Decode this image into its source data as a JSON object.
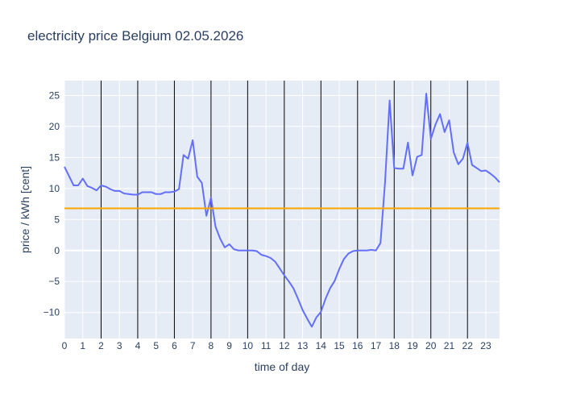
{
  "chart_data": {
    "type": "line",
    "title": "electricity price Belgium 02.05.2026",
    "xlabel": "time of day",
    "ylabel": "price / kWh [cent]",
    "xlim": [
      0,
      23.75
    ],
    "ylim": [
      -14.2,
      27.4
    ],
    "x_ticks": [
      0,
      1,
      2,
      3,
      4,
      5,
      6,
      7,
      8,
      9,
      10,
      11,
      12,
      13,
      14,
      15,
      16,
      17,
      18,
      19,
      20,
      21,
      22,
      23
    ],
    "y_ticks": [
      -10,
      -5,
      0,
      5,
      10,
      15,
      20,
      25
    ],
    "vertical_lines": [
      2,
      4,
      6,
      8,
      10,
      12,
      14,
      16,
      18,
      20,
      22
    ],
    "average_line": {
      "value": 6.8,
      "color": "#ffa500"
    },
    "series": [
      {
        "color": "#636efa",
        "x": [
          0,
          0.25,
          0.5,
          0.75,
          1,
          1.25,
          1.5,
          1.75,
          2,
          2.25,
          2.5,
          2.75,
          3,
          3.25,
          3.5,
          3.75,
          4,
          4.25,
          4.5,
          4.75,
          5,
          5.25,
          5.5,
          5.75,
          6,
          6.25,
          6.5,
          6.75,
          7,
          7.25,
          7.5,
          7.75,
          8,
          8.25,
          8.5,
          8.75,
          9,
          9.25,
          9.5,
          9.75,
          10,
          10.25,
          10.5,
          10.75,
          11,
          11.25,
          11.5,
          11.75,
          12,
          12.25,
          12.5,
          12.75,
          13,
          13.25,
          13.5,
          13.75,
          14,
          14.25,
          14.5,
          14.75,
          15,
          15.25,
          15.5,
          15.75,
          16,
          16.25,
          16.5,
          16.75,
          17,
          17.25,
          17.5,
          17.75,
          18,
          18.25,
          18.5,
          18.75,
          19,
          19.25,
          19.5,
          19.75,
          20,
          20.25,
          20.5,
          20.75,
          21,
          21.25,
          21.5,
          21.75,
          22,
          22.25,
          22.5,
          22.75,
          23,
          23.25,
          23.5,
          23.75
        ],
        "y": [
          13.5,
          12.0,
          10.5,
          10.5,
          11.6,
          10.4,
          10.1,
          9.7,
          10.5,
          10.3,
          9.9,
          9.6,
          9.6,
          9.2,
          9.1,
          9.0,
          9.0,
          9.4,
          9.4,
          9.4,
          9.1,
          9.1,
          9.4,
          9.4,
          9.5,
          9.9,
          15.4,
          14.8,
          17.8,
          11.9,
          10.9,
          5.6,
          8.5,
          3.8,
          1.9,
          0.5,
          1.0,
          0.2,
          0.0,
          0.0,
          0.0,
          0.0,
          -0.1,
          -0.7,
          -0.9,
          -1.2,
          -1.8,
          -2.9,
          -4.0,
          -5.0,
          -6.1,
          -7.8,
          -9.6,
          -11.0,
          -12.3,
          -10.8,
          -9.9,
          -7.8,
          -6.1,
          -4.9,
          -3.0,
          -1.4,
          -0.5,
          -0.1,
          0.0,
          0.0,
          0.0,
          0.1,
          0.0,
          1.2,
          11.0,
          24.2,
          13.3,
          13.2,
          13.2,
          17.4,
          12.1,
          15.1,
          15.4,
          25.3,
          18.0,
          20.3,
          22.0,
          19.1,
          21.0,
          15.8,
          13.9,
          14.8,
          17.4,
          13.8,
          13.3,
          12.8,
          12.9,
          12.4,
          11.8,
          11.0
        ]
      }
    ]
  }
}
